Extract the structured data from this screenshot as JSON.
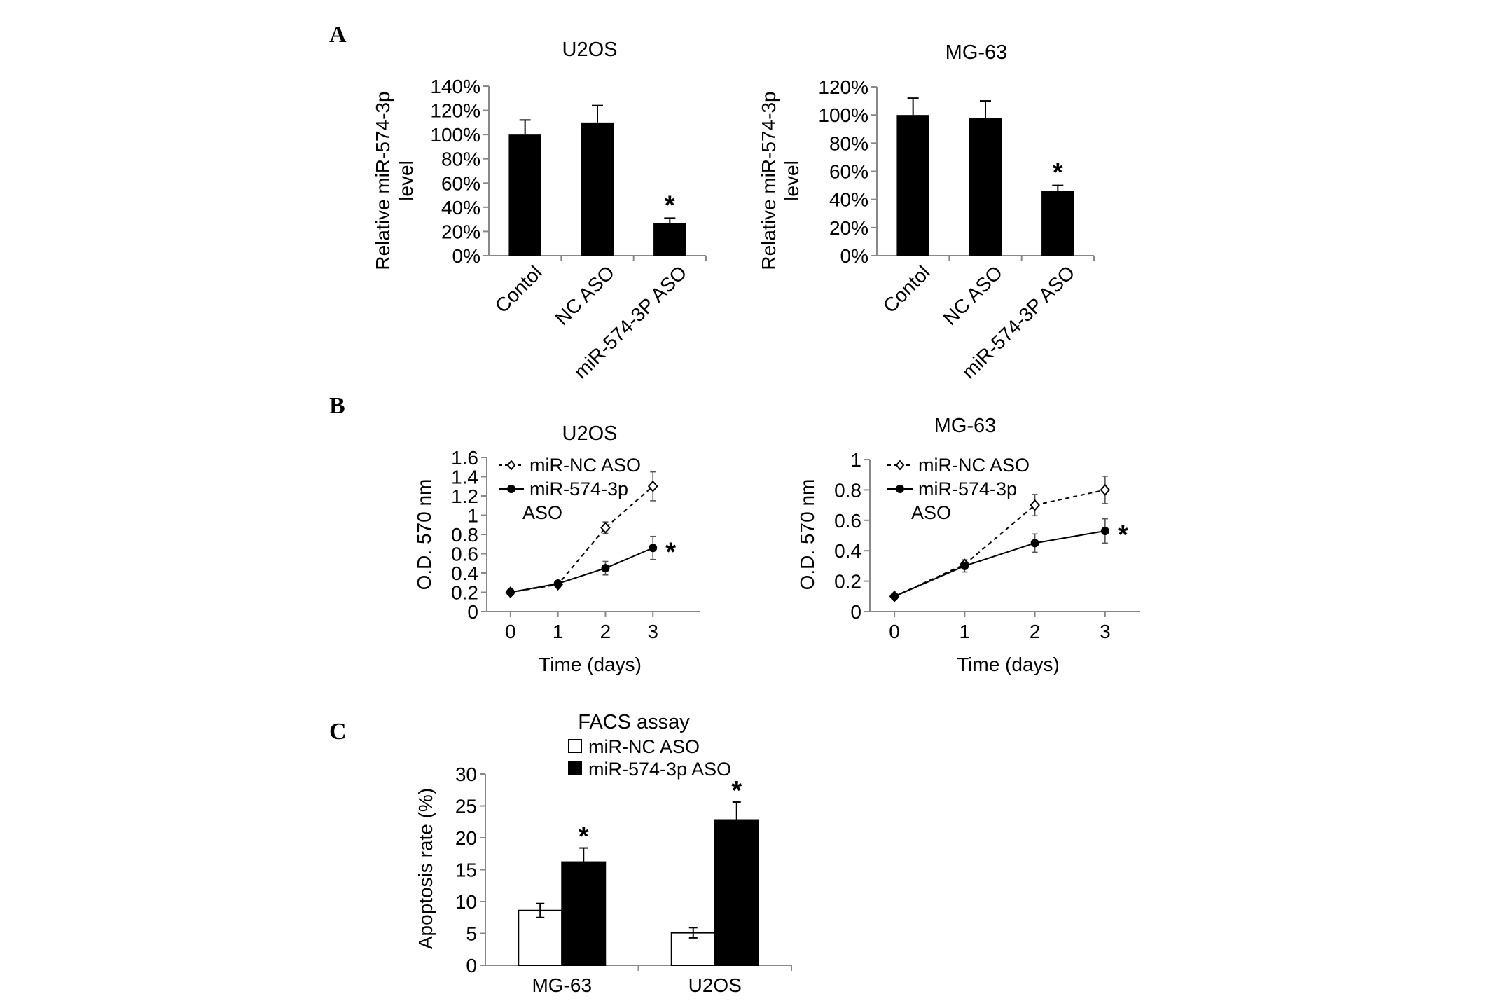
{
  "panel_labels": [
    "A",
    "B",
    "C"
  ],
  "chart_data": [
    {
      "panel": "A",
      "type": "bar",
      "title": "U2OS",
      "ylabel": "Relative miR-574-3p level",
      "ylabel_lines": [
        "Relative miR-574-3p",
        "level"
      ],
      "categories": [
        "Contol",
        "NC ASO",
        "miR-574-3P ASO"
      ],
      "values": [
        100,
        110,
        27
      ],
      "errors": [
        12,
        14,
        4
      ],
      "significance": [
        "",
        "",
        "*"
      ],
      "ylim": [
        0,
        140
      ],
      "yticks": [
        0,
        20,
        40,
        60,
        80,
        100,
        120,
        140
      ],
      "ytick_labels": [
        "0%",
        "20%",
        "40%",
        "60%",
        "80%",
        "100%",
        "120%",
        "140%"
      ],
      "color": "#000000"
    },
    {
      "panel": "A",
      "type": "bar",
      "title": "MG-63",
      "ylabel": "Relative miR-574-3p level",
      "ylabel_lines": [
        "Relative miR-574-3p",
        "level"
      ],
      "categories": [
        "Contol",
        "NC ASO",
        "miR-574-3P ASO"
      ],
      "values": [
        100,
        98,
        46
      ],
      "errors": [
        12,
        12,
        4
      ],
      "significance": [
        "",
        "",
        "*"
      ],
      "ylim": [
        0,
        120
      ],
      "yticks": [
        0,
        20,
        40,
        60,
        80,
        100,
        120
      ],
      "ytick_labels": [
        "0%",
        "20%",
        "40%",
        "60%",
        "80%",
        "100%",
        "120%"
      ],
      "color": "#000000"
    },
    {
      "panel": "B",
      "type": "line",
      "title": "U2OS",
      "xlabel": "Time (days)",
      "ylabel": "O.D. 570 nm",
      "x": [
        0,
        1,
        2,
        3
      ],
      "xlim": [
        -0.5,
        4
      ],
      "ylim": [
        0,
        1.6
      ],
      "yticks": [
        0,
        0.2,
        0.4,
        0.6,
        0.8,
        1,
        1.2,
        1.4,
        1.6
      ],
      "ytick_labels": [
        "0",
        "0.2",
        "0.4",
        "0.6",
        "0.8",
        "1",
        "1.2",
        "1.4",
        "1.6"
      ],
      "series": [
        {
          "name": "miR-NC ASO",
          "name_lines": [
            "miR-NC ASO"
          ],
          "values": [
            0.2,
            0.28,
            0.87,
            1.3
          ],
          "errors": [
            0.02,
            0.03,
            0.06,
            0.15
          ],
          "style": "dashed",
          "marker": "open-diamond"
        },
        {
          "name": "miR-574-3p ASO",
          "name_lines": [
            "miR-574-3p",
            "ASO"
          ],
          "values": [
            0.2,
            0.29,
            0.45,
            0.66
          ],
          "errors": [
            0.02,
            0.03,
            0.07,
            0.12
          ],
          "style": "solid",
          "marker": "filled-circle"
        }
      ],
      "significance": "*"
    },
    {
      "panel": "B",
      "type": "line",
      "title": "MG-63",
      "xlabel": "Time (days)",
      "ylabel": "O.D. 570 nm",
      "x": [
        0,
        1,
        2,
        3
      ],
      "xlim": [
        -0.35,
        3.5
      ],
      "ylim": [
        0,
        1
      ],
      "yticks": [
        0,
        0.2,
        0.4,
        0.6,
        0.8,
        1
      ],
      "ytick_labels": [
        "0",
        "0.2",
        "0.4",
        "0.6",
        "0.8",
        "1"
      ],
      "series": [
        {
          "name": "miR-NC ASO",
          "name_lines": [
            "miR-NC ASO"
          ],
          "values": [
            0.1,
            0.31,
            0.7,
            0.8
          ],
          "errors": [
            0.01,
            0.03,
            0.07,
            0.09
          ],
          "style": "dashed",
          "marker": "open-diamond"
        },
        {
          "name": "miR-574-3p ASO",
          "name_lines": [
            "miR-574-3p",
            "ASO"
          ],
          "values": [
            0.1,
            0.3,
            0.45,
            0.53
          ],
          "errors": [
            0.01,
            0.04,
            0.06,
            0.08
          ],
          "style": "solid",
          "marker": "filled-circle"
        }
      ],
      "significance": "*"
    },
    {
      "panel": "C",
      "type": "bar",
      "title": "FACS assay",
      "ylabel": "Apoptosis rate (%)",
      "categories": [
        "MG-63",
        "U2OS"
      ],
      "ylim": [
        0,
        30
      ],
      "yticks": [
        0,
        5,
        10,
        15,
        20,
        25,
        30
      ],
      "ytick_labels": [
        "0",
        "5",
        "10",
        "15",
        "20",
        "25",
        "30"
      ],
      "series": [
        {
          "name": "miR-NC ASO",
          "values": [
            8.6,
            5.1
          ],
          "errors": [
            1.1,
            0.8
          ],
          "color": "#ffffff"
        },
        {
          "name": "miR-574-3p ASO",
          "values": [
            16.2,
            22.8
          ],
          "errors": [
            2.2,
            2.8
          ],
          "color": "#000000"
        }
      ],
      "significance": [
        "*",
        "*"
      ]
    }
  ]
}
